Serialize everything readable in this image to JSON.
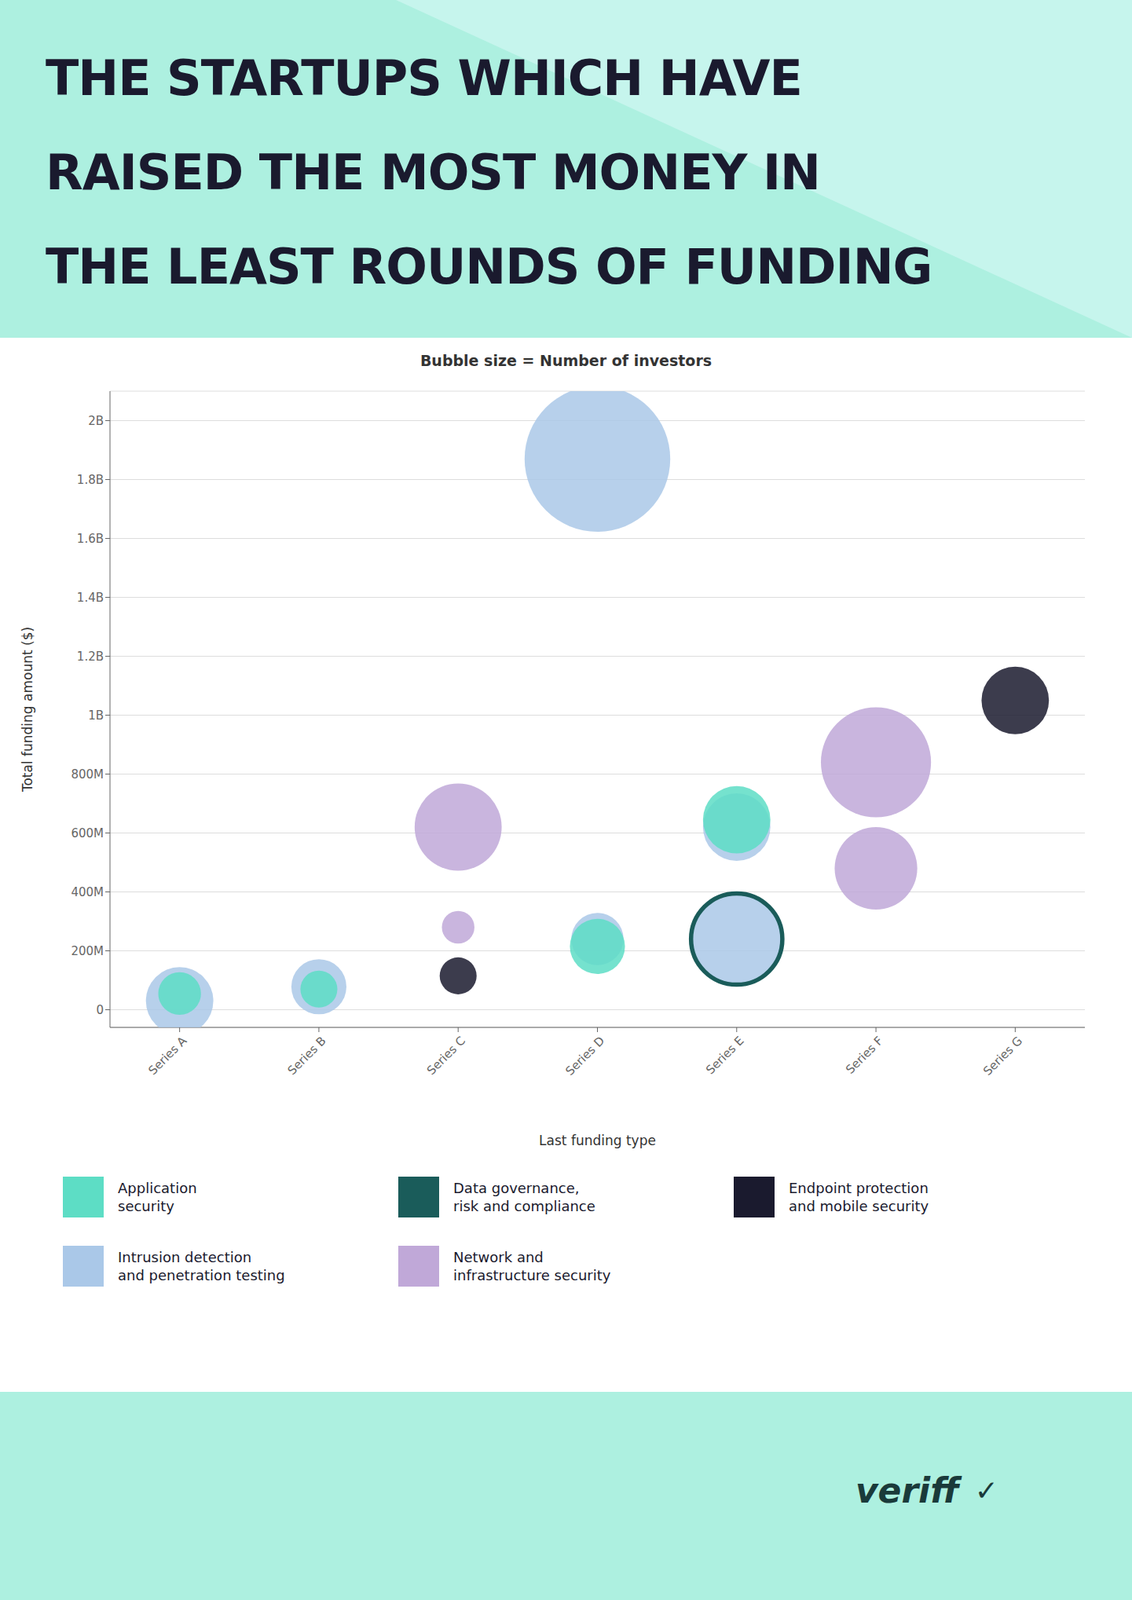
{
  "chart_data": {
    "type": "scatter",
    "title": "THE STARTUPS WHICH HAVE\nRAISED THE MOST MONEY IN\nTHE LEAST ROUNDS OF FUNDING",
    "subtitle": "Bubble size = Number of investors",
    "x_label": "Last funding type",
    "y_label": "Total funding amount ($)",
    "categories": [
      "Series A",
      "Series B",
      "Series C",
      "Series D",
      "Series E",
      "Series F",
      "Series G"
    ],
    "series": [
      {
        "name": "Application\nsecurity",
        "color": "#5dddc5",
        "marker": "circle",
        "x": [
          "Series A",
          "Series B",
          "Series D",
          "Series E"
        ],
        "values": [
          55000000,
          70000000,
          215000000,
          645000000
        ],
        "sizes": [
          1200,
          900,
          2000,
          3000
        ]
      },
      {
        "name": "Data governance,\nrisk and compliance",
        "color": "#1a5c5a",
        "marker": "ring",
        "x": [
          "Series E"
        ],
        "values": [
          240000000
        ],
        "sizes": [
          5500
        ]
      },
      {
        "name": "Endpoint protection\nand mobile security",
        "color": "#1a1a2e",
        "marker": "circle",
        "x": [
          "Series C",
          "Series G"
        ],
        "values": [
          115000000,
          1050000000
        ],
        "sizes": [
          900,
          3000
        ]
      },
      {
        "name": "Intrusion detection\nand penetration testing",
        "color": "#aac8e8",
        "marker": "circle",
        "x": [
          "Series A",
          "Series B",
          "Series D",
          "Series D",
          "Series E",
          "Series E"
        ],
        "values": [
          30000000,
          78000000,
          1870000000,
          240000000,
          620000000,
          240000000
        ],
        "sizes": [
          3000,
          2000,
          14000,
          1800,
          3000,
          5500
        ]
      },
      {
        "name": "Network and\ninfrastructure security",
        "color": "#c0a8d8",
        "marker": "circle",
        "x": [
          "Series C",
          "Series C",
          "Series F",
          "Series F"
        ],
        "values": [
          280000000,
          620000000,
          840000000,
          480000000
        ],
        "sizes": [
          700,
          5000,
          8000,
          4500
        ]
      }
    ],
    "ylim": [
      -60000000,
      2100000000
    ],
    "yticks": [
      0,
      {
        "value": 200000000,
        "label": "200M"
      },
      {
        "value": 400000000,
        "label": "400M"
      },
      {
        "value": 600000000,
        "label": "600M"
      },
      {
        "value": 800000000,
        "label": "800M"
      },
      {
        "value": 1000000000,
        "label": "1B"
      },
      {
        "value": 1200000000,
        "label": "1.2B"
      },
      {
        "value": 1400000000,
        "label": "1.4B"
      },
      {
        "value": 1600000000,
        "label": "1.6B"
      },
      {
        "value": 1800000000,
        "label": "1.8B"
      },
      {
        "value": 2000000000,
        "label": "2B"
      }
    ],
    "grid": true,
    "legend": "bottom",
    "annotations": [
      "veriff",
      "✓"
    ]
  }
}
